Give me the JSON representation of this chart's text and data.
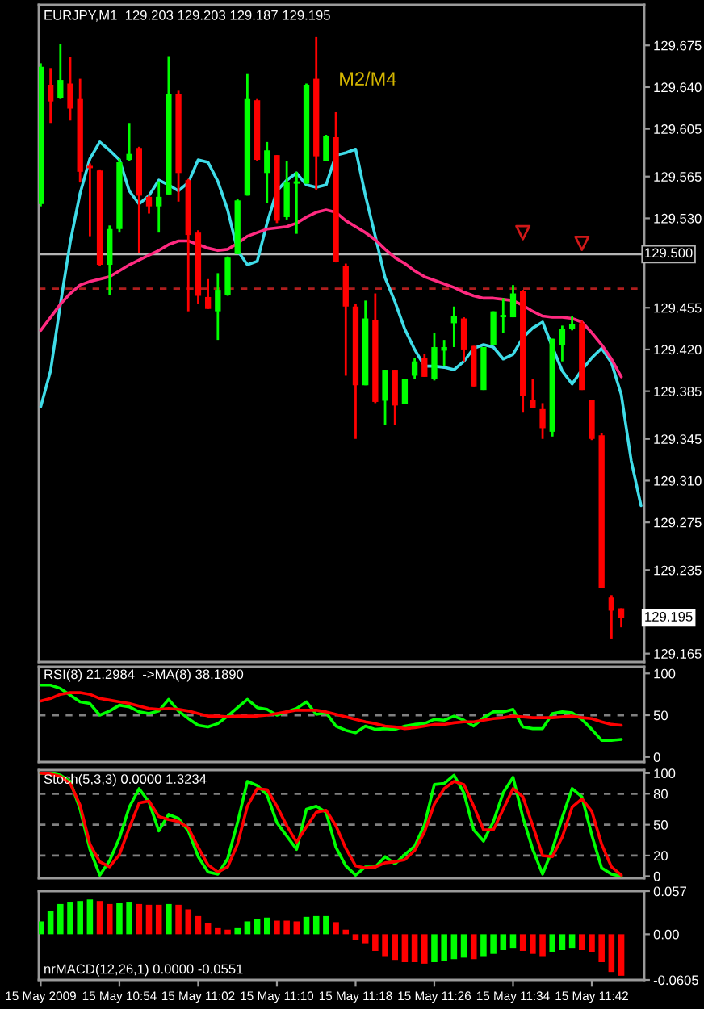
{
  "chart_data": [
    {
      "type": "candlestick",
      "title": "EURJPY,M1  129.203 129.203 129.187 129.195",
      "x": [
        "2009-05-15T10:46",
        "2009-05-15T10:47",
        "2009-05-15T10:48",
        "2009-05-15T10:49",
        "2009-05-15T10:50",
        "2009-05-15T10:51",
        "2009-05-15T10:52",
        "2009-05-15T10:53",
        "2009-05-15T10:54",
        "2009-05-15T10:55",
        "2009-05-15T10:56",
        "2009-05-15T10:57",
        "2009-05-15T10:58",
        "2009-05-15T10:59",
        "2009-05-15T11:00",
        "2009-05-15T11:01",
        "2009-05-15T11:02",
        "2009-05-15T11:03",
        "2009-05-15T11:04",
        "2009-05-15T11:05",
        "2009-05-15T11:06",
        "2009-05-15T11:07",
        "2009-05-15T11:08",
        "2009-05-15T11:09",
        "2009-05-15T11:10",
        "2009-05-15T11:11",
        "2009-05-15T11:12",
        "2009-05-15T11:13",
        "2009-05-15T11:14",
        "2009-05-15T11:15",
        "2009-05-15T11:16",
        "2009-05-15T11:17",
        "2009-05-15T11:18",
        "2009-05-15T11:19",
        "2009-05-15T11:20",
        "2009-05-15T11:21",
        "2009-05-15T11:22",
        "2009-05-15T11:23",
        "2009-05-15T11:24",
        "2009-05-15T11:25",
        "2009-05-15T11:26",
        "2009-05-15T11:27",
        "2009-05-15T11:28",
        "2009-05-15T11:29",
        "2009-05-15T11:30",
        "2009-05-15T11:31",
        "2009-05-15T11:32",
        "2009-05-15T11:33",
        "2009-05-15T11:34",
        "2009-05-15T11:35",
        "2009-05-15T11:36",
        "2009-05-15T11:37",
        "2009-05-15T11:38",
        "2009-05-15T11:39",
        "2009-05-15T11:40",
        "2009-05-15T11:41",
        "2009-05-15T11:42",
        "2009-05-15T11:43",
        "2009-05-15T11:44",
        "2009-05-15T11:45"
      ],
      "ohlc": [
        [
          129.542,
          129.66,
          129.54,
          129.657
        ],
        [
          129.642,
          129.656,
          129.61,
          129.628
        ],
        [
          129.631,
          129.676,
          129.63,
          129.646
        ],
        [
          129.643,
          129.665,
          129.612,
          129.622
        ],
        [
          129.63,
          129.647,
          129.56,
          129.569
        ],
        [
          129.574,
          129.576,
          129.515,
          129.572
        ],
        [
          129.57,
          129.571,
          129.49,
          129.491
        ],
        [
          129.491,
          129.524,
          129.466,
          129.521
        ],
        [
          129.521,
          129.58,
          129.518,
          129.577
        ],
        [
          129.579,
          129.61,
          129.578,
          129.584
        ],
        [
          129.589,
          129.59,
          129.501,
          129.549
        ],
        [
          129.548,
          129.549,
          129.534,
          129.54
        ],
        [
          129.54,
          129.561,
          129.518,
          129.548
        ],
        [
          129.55,
          129.666,
          129.55,
          129.634
        ],
        [
          129.634,
          129.637,
          129.544,
          129.568
        ],
        [
          129.562,
          129.563,
          129.452,
          129.516
        ],
        [
          129.518,
          129.52,
          129.458,
          129.465
        ],
        [
          129.464,
          129.479,
          129.454,
          129.454
        ],
        [
          129.452,
          129.484,
          129.428,
          129.47
        ],
        [
          129.466,
          129.498,
          129.465,
          129.497
        ],
        [
          129.5,
          129.546,
          129.5,
          129.545
        ],
        [
          129.549,
          129.651,
          129.549,
          129.63
        ],
        [
          129.629,
          129.63,
          129.578,
          129.579
        ],
        [
          129.568,
          129.594,
          129.543,
          129.587
        ],
        [
          129.583,
          129.583,
          129.526,
          129.528
        ],
        [
          129.531,
          129.578,
          129.529,
          129.56
        ],
        [
          129.559,
          129.569,
          129.517,
          129.561
        ],
        [
          129.559,
          129.643,
          129.559,
          129.642
        ],
        [
          129.647,
          129.682,
          129.554,
          129.582
        ],
        [
          129.578,
          129.6,
          129.578,
          129.599
        ],
        [
          129.598,
          129.619,
          129.493,
          129.493
        ],
        [
          129.49,
          129.492,
          129.398,
          129.456
        ],
        [
          129.456,
          129.458,
          129.345,
          129.39
        ],
        [
          129.39,
          129.461,
          129.39,
          129.446
        ],
        [
          129.445,
          129.467,
          129.375,
          129.376
        ],
        [
          129.377,
          129.403,
          129.357,
          129.403
        ],
        [
          129.403,
          129.403,
          129.357,
          129.373
        ],
        [
          129.374,
          129.395,
          129.374,
          129.395
        ],
        [
          129.398,
          129.413,
          129.395,
          129.41
        ],
        [
          129.413,
          129.416,
          129.397,
          129.397
        ],
        [
          129.395,
          129.434,
          129.394,
          129.422
        ],
        [
          129.419,
          129.428,
          129.406,
          129.422
        ],
        [
          129.442,
          129.456,
          129.422,
          129.448
        ],
        [
          129.446,
          129.447,
          129.41,
          129.42
        ],
        [
          129.423,
          129.423,
          129.389,
          129.389
        ],
        [
          129.386,
          129.422,
          129.386,
          129.422
        ],
        [
          129.424,
          129.452,
          129.424,
          129.452
        ],
        [
          129.447,
          129.463,
          129.434,
          129.449
        ],
        [
          129.447,
          129.474,
          129.447,
          129.467
        ],
        [
          129.469,
          129.47,
          129.367,
          129.381
        ],
        [
          129.378,
          129.395,
          129.371,
          129.371
        ],
        [
          129.37,
          129.375,
          129.345,
          129.354
        ],
        [
          129.351,
          129.429,
          129.347,
          129.429
        ],
        [
          129.424,
          129.44,
          129.41,
          129.437
        ],
        [
          129.437,
          129.448,
          129.436,
          129.441
        ],
        [
          129.442,
          129.444,
          129.386,
          129.386
        ],
        [
          129.378,
          129.378,
          129.344,
          129.345
        ],
        [
          129.348,
          129.35,
          129.22,
          129.22
        ],
        [
          129.212,
          129.214,
          129.177,
          129.201
        ],
        [
          129.203,
          129.203,
          129.187,
          129.195
        ]
      ],
      "colors": [
        "#00ff00",
        "#ff0000",
        "#00ff00",
        "#ff0000",
        "#ff0000",
        "#ff0000",
        "#ff0000",
        "#00ff00",
        "#00ff00",
        "#00ff00",
        "#ff0000",
        "#ff0000",
        "#00ff00",
        "#00ff00",
        "#ff0000",
        "#ff0000",
        "#ff0000",
        "#ff0000",
        "#00ff00",
        "#00ff00",
        "#00ff00",
        "#00ff00",
        "#ff0000",
        "#00ff00",
        "#ff0000",
        "#00ff00",
        "#00ff00",
        "#00ff00",
        "#ff0000",
        "#00ff00",
        "#ff0000",
        "#ff0000",
        "#ff0000",
        "#00ff00",
        "#ff0000",
        "#00ff00",
        "#ff0000",
        "#00ff00",
        "#00ff00",
        "#ff0000",
        "#00ff00",
        "#00ff00",
        "#00ff00",
        "#ff0000",
        "#ff0000",
        "#00ff00",
        "#00ff00",
        "#00ff00",
        "#00ff00",
        "#ff0000",
        "#ff0000",
        "#ff0000",
        "#00ff00",
        "#00ff00",
        "#00ff00",
        "#ff0000",
        "#ff0000",
        "#ff0000",
        "#ff0000",
        "#ff0000"
      ],
      "series": [
        {
          "type": "line",
          "color": "#3fdce8",
          "x": [
            "2009-05-15T10:46",
            "2009-05-15T10:47",
            "2009-05-15T10:48",
            "2009-05-15T10:49",
            "2009-05-15T10:50",
            "2009-05-15T10:51",
            "2009-05-15T10:52",
            "2009-05-15T10:53",
            "2009-05-15T10:54",
            "2009-05-15T10:55",
            "2009-05-15T10:56",
            "2009-05-15T10:57",
            "2009-05-15T10:58",
            "2009-05-15T10:59",
            "2009-05-15T11:00",
            "2009-05-15T11:01",
            "2009-05-15T11:02",
            "2009-05-15T11:03",
            "2009-05-15T11:04",
            "2009-05-15T11:05",
            "2009-05-15T11:06",
            "2009-05-15T11:07",
            "2009-05-15T11:08",
            "2009-05-15T11:09",
            "2009-05-15T11:10",
            "2009-05-15T11:11",
            "2009-05-15T11:12",
            "2009-05-15T11:13",
            "2009-05-15T11:14",
            "2009-05-15T11:15",
            "2009-05-15T11:16",
            "2009-05-15T11:17",
            "2009-05-15T11:18",
            "2009-05-15T11:19",
            "2009-05-15T11:20",
            "2009-05-15T11:21",
            "2009-05-15T11:22",
            "2009-05-15T11:23",
            "2009-05-15T11:24",
            "2009-05-15T11:25",
            "2009-05-15T11:26",
            "2009-05-15T11:27",
            "2009-05-15T11:28",
            "2009-05-15T11:29",
            "2009-05-15T11:30",
            "2009-05-15T11:31",
            "2009-05-15T11:32",
            "2009-05-15T11:33",
            "2009-05-15T11:34",
            "2009-05-15T11:35",
            "2009-05-15T11:36",
            "2009-05-15T11:37",
            "2009-05-15T11:38",
            "2009-05-15T11:39",
            "2009-05-15T11:40",
            "2009-05-15T11:41",
            "2009-05-15T11:42",
            "2009-05-15T11:43",
            "2009-05-15T11:44",
            "2009-05-15T11:45",
            "2009-05-15T11:46",
            "2009-05-15T11:47"
          ],
          "values": [
            129.372,
            129.402,
            129.458,
            129.51,
            129.551,
            129.58,
            129.594,
            129.587,
            129.579,
            129.553,
            129.542,
            129.549,
            129.562,
            129.558,
            129.553,
            129.56,
            129.579,
            129.577,
            129.561,
            129.537,
            129.503,
            129.491,
            129.494,
            129.526,
            129.553,
            129.562,
            129.568,
            129.558,
            129.556,
            129.558,
            129.583,
            129.585,
            129.588,
            129.549,
            129.515,
            129.48,
            129.46,
            129.437,
            129.42,
            129.406,
            129.406,
            129.405,
            129.403,
            129.41,
            129.421,
            129.424,
            129.422,
            129.412,
            129.416,
            129.43,
            129.438,
            129.443,
            129.422,
            129.402,
            129.391,
            129.403,
            129.413,
            129.421,
            129.409,
            129.382,
            129.327,
            129.289
          ]
        },
        {
          "type": "line",
          "color": "#ff2a80",
          "values": [
            129.436,
            129.447,
            129.458,
            129.467,
            129.474,
            129.477,
            129.479,
            129.481,
            129.486,
            129.491,
            129.495,
            129.499,
            129.503,
            129.508,
            129.511,
            129.511,
            129.508,
            129.505,
            129.503,
            129.504,
            129.509,
            129.515,
            129.518,
            129.521,
            129.522,
            129.523,
            129.526,
            129.531,
            129.535,
            129.537,
            129.535,
            129.528,
            129.523,
            129.518,
            129.512,
            129.504,
            129.497,
            129.492,
            129.486,
            129.481,
            129.478,
            129.475,
            129.472,
            129.468,
            129.465,
            129.463,
            129.463,
            129.462,
            129.461,
            129.457,
            129.452,
            129.448,
            129.447,
            129.447,
            129.446,
            129.443,
            129.434,
            129.424,
            129.412,
            129.397
          ]
        },
        {
          "type": "scatter",
          "marker": "triangle",
          "color": "#d01818",
          "x": [
            "2009-05-15T11:35",
            "2009-05-15T11:41"
          ],
          "values": [
            129.518,
            129.509
          ]
        }
      ],
      "xlim": [
        "2009-05-15T10:45:48",
        "2009-05-15T11:47:20"
      ],
      "ylim": [
        129.158,
        129.709
      ],
      "yticks": [
        129.675,
        {
          "value": 129.64,
          "label": "129.640"
        },
        129.605,
        129.565,
        {
          "value": 129.53,
          "label": "129.530"
        },
        129.455,
        {
          "value": 129.42,
          "label": "129.420"
        },
        129.385,
        129.345,
        {
          "value": 129.31,
          "label": "129.310"
        },
        129.275,
        129.235,
        129.165
      ],
      "tick_labels": "y",
      "ref_lines": [
        {
          "axis": "y",
          "value": 129.5,
          "label": "129.500",
          "color": "#b4b4b4"
        },
        {
          "axis": "y",
          "value": 129.471,
          "color": "#b01e1e",
          "line_style": "dashed"
        }
      ],
      "annotations": [
        "M2/M4",
        {
          "text": "129.195",
          "y": 129.195
        }
      ]
    },
    {
      "type": "line",
      "title": "RSI(8) 21.2984  ->MA(8) 38.1890",
      "x": [
        "2009-05-15T10:46",
        "2009-05-15T10:47",
        "2009-05-15T10:48",
        "2009-05-15T10:49",
        "2009-05-15T10:50",
        "2009-05-15T10:51",
        "2009-05-15T10:52",
        "2009-05-15T10:53",
        "2009-05-15T10:54",
        "2009-05-15T10:55",
        "2009-05-15T10:56",
        "2009-05-15T10:57",
        "2009-05-15T10:58",
        "2009-05-15T10:59",
        "2009-05-15T11:00",
        "2009-05-15T11:01",
        "2009-05-15T11:02",
        "2009-05-15T11:03",
        "2009-05-15T11:04",
        "2009-05-15T11:05",
        "2009-05-15T11:06",
        "2009-05-15T11:07",
        "2009-05-15T11:08",
        "2009-05-15T11:09",
        "2009-05-15T11:10",
        "2009-05-15T11:11",
        "2009-05-15T11:12",
        "2009-05-15T11:13",
        "2009-05-15T11:14",
        "2009-05-15T11:15",
        "2009-05-15T11:16",
        "2009-05-15T11:17",
        "2009-05-15T11:18",
        "2009-05-15T11:19",
        "2009-05-15T11:20",
        "2009-05-15T11:21",
        "2009-05-15T11:22",
        "2009-05-15T11:23",
        "2009-05-15T11:24",
        "2009-05-15T11:25",
        "2009-05-15T11:26",
        "2009-05-15T11:27",
        "2009-05-15T11:28",
        "2009-05-15T11:29",
        "2009-05-15T11:30",
        "2009-05-15T11:31",
        "2009-05-15T11:32",
        "2009-05-15T11:33",
        "2009-05-15T11:34",
        "2009-05-15T11:35",
        "2009-05-15T11:36",
        "2009-05-15T11:37",
        "2009-05-15T11:38",
        "2009-05-15T11:39",
        "2009-05-15T11:40",
        "2009-05-15T11:41",
        "2009-05-15T11:42",
        "2009-05-15T11:43",
        "2009-05-15T11:44",
        "2009-05-15T11:45"
      ],
      "series": [
        {
          "color": "#00ff00",
          "values": [
            86,
            86,
            82,
            74,
            66,
            64,
            50,
            55,
            62,
            60,
            54,
            52,
            55,
            69,
            55,
            46,
            38,
            36,
            40,
            49,
            59,
            69,
            59,
            57,
            50,
            54,
            58,
            66,
            51,
            53,
            37,
            32,
            29,
            37,
            33,
            34,
            33,
            37,
            39,
            40,
            45,
            44,
            49,
            44,
            37,
            47,
            54,
            54,
            57,
            36,
            34,
            34,
            52,
            54,
            53,
            45,
            33,
            20,
            20,
            21
          ]
        },
        {
          "color": "#ff0000",
          "values": [
            67,
            70,
            75,
            77,
            77,
            75,
            70,
            68,
            66,
            64,
            61,
            58,
            57,
            58,
            57,
            55,
            52,
            49,
            49,
            48,
            49,
            49,
            49,
            50,
            52,
            54,
            56,
            56,
            56,
            54,
            51,
            48,
            45,
            42,
            40,
            37,
            36,
            34,
            35,
            37,
            39,
            39,
            41,
            42,
            42,
            44,
            46,
            47,
            49,
            48,
            47,
            47,
            47,
            48,
            49,
            47,
            46,
            42,
            39,
            38
          ]
        }
      ],
      "xlim": [
        "2009-05-15T10:45:48",
        "2009-05-15T11:47:20"
      ],
      "ylim": [
        -6,
        108
      ],
      "yticks": [
        0,
        50,
        100
      ],
      "tick_labels": "y",
      "ref_lines": [
        {
          "axis": "y",
          "value": 50,
          "color": "#808080",
          "line_style": "dashed"
        }
      ]
    },
    {
      "type": "line",
      "title": "Stoch(5,3,3) 0.0000 1.3234",
      "x": [
        "2009-05-15T10:46",
        "2009-05-15T10:47",
        "2009-05-15T10:48",
        "2009-05-15T10:49",
        "2009-05-15T10:50",
        "2009-05-15T10:51",
        "2009-05-15T10:52",
        "2009-05-15T10:53",
        "2009-05-15T10:54",
        "2009-05-15T10:55",
        "2009-05-15T10:56",
        "2009-05-15T10:57",
        "2009-05-15T10:58",
        "2009-05-15T10:59",
        "2009-05-15T11:00",
        "2009-05-15T11:01",
        "2009-05-15T11:02",
        "2009-05-15T11:03",
        "2009-05-15T11:04",
        "2009-05-15T11:05",
        "2009-05-15T11:06",
        "2009-05-15T11:07",
        "2009-05-15T11:08",
        "2009-05-15T11:09",
        "2009-05-15T11:10",
        "2009-05-15T11:11",
        "2009-05-15T11:12",
        "2009-05-15T11:13",
        "2009-05-15T11:14",
        "2009-05-15T11:15",
        "2009-05-15T11:16",
        "2009-05-15T11:17",
        "2009-05-15T11:18",
        "2009-05-15T11:19",
        "2009-05-15T11:20",
        "2009-05-15T11:21",
        "2009-05-15T11:22",
        "2009-05-15T11:23",
        "2009-05-15T11:24",
        "2009-05-15T11:25",
        "2009-05-15T11:26",
        "2009-05-15T11:27",
        "2009-05-15T11:28",
        "2009-05-15T11:29",
        "2009-05-15T11:30",
        "2009-05-15T11:31",
        "2009-05-15T11:32",
        "2009-05-15T11:33",
        "2009-05-15T11:34",
        "2009-05-15T11:35",
        "2009-05-15T11:36",
        "2009-05-15T11:37",
        "2009-05-15T11:38",
        "2009-05-15T11:39",
        "2009-05-15T11:40",
        "2009-05-15T11:41",
        "2009-05-15T11:42",
        "2009-05-15T11:43",
        "2009-05-15T11:44",
        "2009-05-15T11:45"
      ],
      "series": [
        {
          "color": "#00ff00",
          "values": [
            100,
            100,
            98,
            92,
            65,
            26,
            1,
            15,
            37,
            67,
            85,
            72,
            44,
            60,
            56,
            44,
            19,
            4,
            2,
            17,
            52,
            92,
            88,
            79,
            52,
            39,
            26,
            65,
            68,
            62,
            28,
            10,
            1,
            9,
            9,
            19,
            12,
            21,
            29,
            50,
            89,
            90,
            98,
            81,
            45,
            34,
            53,
            81,
            96,
            57,
            26,
            2,
            26,
            57,
            85,
            77,
            40,
            8,
            2,
            0
          ]
        },
        {
          "color": "#ff0000",
          "values": [
            100,
            99,
            97,
            90,
            69,
            31,
            14,
            9,
            21,
            47,
            71,
            73,
            58,
            55,
            53,
            47,
            28,
            11,
            4,
            9,
            31,
            68,
            85,
            84,
            68,
            49,
            33,
            48,
            62,
            64,
            49,
            27,
            10,
            8,
            9,
            13,
            14,
            16,
            25,
            43,
            70,
            85,
            92,
            89,
            68,
            45,
            45,
            65,
            85,
            77,
            49,
            20,
            19,
            38,
            67,
            75,
            63,
            31,
            9,
            1
          ]
        }
      ],
      "xlim": [
        "2009-05-15T10:45:48",
        "2009-05-15T11:47:20"
      ],
      "ylim": [
        -2,
        103
      ],
      "yticks": [
        0,
        20,
        50,
        80,
        100
      ],
      "tick_labels": "y",
      "ref_lines": [
        {
          "axis": "y",
          "value": 20,
          "color": "#808080",
          "line_style": "dashed"
        },
        {
          "axis": "y",
          "value": 50,
          "color": "#808080",
          "line_style": "dashed"
        },
        {
          "axis": "y",
          "value": 80,
          "color": "#808080",
          "line_style": "dashed"
        }
      ]
    },
    {
      "type": "bar",
      "title": "nrMACD(12,26,1) 0.0000 -0.0551",
      "x": [
        "2009-05-15T10:46",
        "2009-05-15T10:47",
        "2009-05-15T10:48",
        "2009-05-15T10:49",
        "2009-05-15T10:50",
        "2009-05-15T10:51",
        "2009-05-15T10:52",
        "2009-05-15T10:53",
        "2009-05-15T10:54",
        "2009-05-15T10:55",
        "2009-05-15T10:56",
        "2009-05-15T10:57",
        "2009-05-15T10:58",
        "2009-05-15T10:59",
        "2009-05-15T11:00",
        "2009-05-15T11:01",
        "2009-05-15T11:02",
        "2009-05-15T11:03",
        "2009-05-15T11:04",
        "2009-05-15T11:05",
        "2009-05-15T11:06",
        "2009-05-15T11:07",
        "2009-05-15T11:08",
        "2009-05-15T11:09",
        "2009-05-15T11:10",
        "2009-05-15T11:11",
        "2009-05-15T11:12",
        "2009-05-15T11:13",
        "2009-05-15T11:14",
        "2009-05-15T11:15",
        "2009-05-15T11:16",
        "2009-05-15T11:17",
        "2009-05-15T11:18",
        "2009-05-15T11:19",
        "2009-05-15T11:20",
        "2009-05-15T11:21",
        "2009-05-15T11:22",
        "2009-05-15T11:23",
        "2009-05-15T11:24",
        "2009-05-15T11:25",
        "2009-05-15T11:26",
        "2009-05-15T11:27",
        "2009-05-15T11:28",
        "2009-05-15T11:29",
        "2009-05-15T11:30",
        "2009-05-15T11:31",
        "2009-05-15T11:32",
        "2009-05-15T11:33",
        "2009-05-15T11:34",
        "2009-05-15T11:35",
        "2009-05-15T11:36",
        "2009-05-15T11:37",
        "2009-05-15T11:38",
        "2009-05-15T11:39",
        "2009-05-15T11:40",
        "2009-05-15T11:41",
        "2009-05-15T11:42",
        "2009-05-15T11:43",
        "2009-05-15T11:44",
        "2009-05-15T11:45"
      ],
      "values": [
        0.017,
        0.031,
        0.04,
        0.042,
        0.044,
        0.046,
        0.044,
        0.04,
        0.041,
        0.042,
        0.04,
        0.039,
        0.039,
        0.04,
        0.039,
        0.033,
        0.024,
        0.015,
        0.008,
        0.006,
        0.008,
        0.017,
        0.02,
        0.022,
        0.018,
        0.018,
        0.017,
        0.023,
        0.024,
        0.024,
        0.016,
        0.006,
        -0.008,
        -0.012,
        -0.022,
        -0.029,
        -0.034,
        -0.037,
        -0.037,
        -0.039,
        -0.037,
        -0.035,
        -0.033,
        -0.031,
        -0.033,
        -0.029,
        -0.026,
        -0.021,
        -0.019,
        -0.022,
        -0.026,
        -0.029,
        -0.024,
        -0.021,
        -0.019,
        -0.021,
        -0.024,
        -0.037,
        -0.05,
        -0.055
      ],
      "colors": [
        "#00ff00",
        "#00ff00",
        "#00ff00",
        "#00ff00",
        "#00ff00",
        "#00ff00",
        "#ff0000",
        "#ff0000",
        "#00ff00",
        "#00ff00",
        "#ff0000",
        "#ff0000",
        "#ff0000",
        "#00ff00",
        "#ff0000",
        "#ff0000",
        "#ff0000",
        "#ff0000",
        "#ff0000",
        "#ff0000",
        "#00ff00",
        "#00ff00",
        "#00ff00",
        "#00ff00",
        "#ff0000",
        "#ff0000",
        "#ff0000",
        "#00ff00",
        "#00ff00",
        "#00ff00",
        "#ff0000",
        "#ff0000",
        "#ff0000",
        "#ff0000",
        "#ff0000",
        "#ff0000",
        "#ff0000",
        "#ff0000",
        "#ff0000",
        "#ff0000",
        "#00ff00",
        "#00ff00",
        "#00ff00",
        "#00ff00",
        "#ff0000",
        "#00ff00",
        "#00ff00",
        "#00ff00",
        "#00ff00",
        "#ff0000",
        "#ff0000",
        "#ff0000",
        "#00ff00",
        "#00ff00",
        "#00ff00",
        "#ff0000",
        "#ff0000",
        "#ff0000",
        "#ff0000",
        "#ff0000"
      ],
      "xlim": [
        "2009-05-15T10:45:48",
        "2009-05-15T11:47:20"
      ],
      "ylim": [
        -0.0605,
        0.057
      ],
      "xticks": [
        {
          "value": "2009-05-15T10:46",
          "label": "15 May 2009"
        },
        {
          "value": "2009-05-15T10:54",
          "label": "15 May 10:54"
        },
        {
          "value": "2009-05-15T11:02",
          "label": "15 May 11:02"
        },
        {
          "value": "2009-05-15T11:10",
          "label": "15 May 11:10"
        },
        {
          "value": "2009-05-15T11:18",
          "label": "15 May 11:18"
        },
        {
          "value": "2009-05-15T11:26",
          "label": "15 May 11:26"
        },
        {
          "value": "2009-05-15T11:34",
          "label": "15 May 11:34"
        },
        {
          "value": "2009-05-15T11:42",
          "label": "15 May 11:42"
        }
      ],
      "yticks": [
        -0.0605,
        {
          "value": 0,
          "label": "0.00"
        },
        0.057
      ]
    }
  ]
}
